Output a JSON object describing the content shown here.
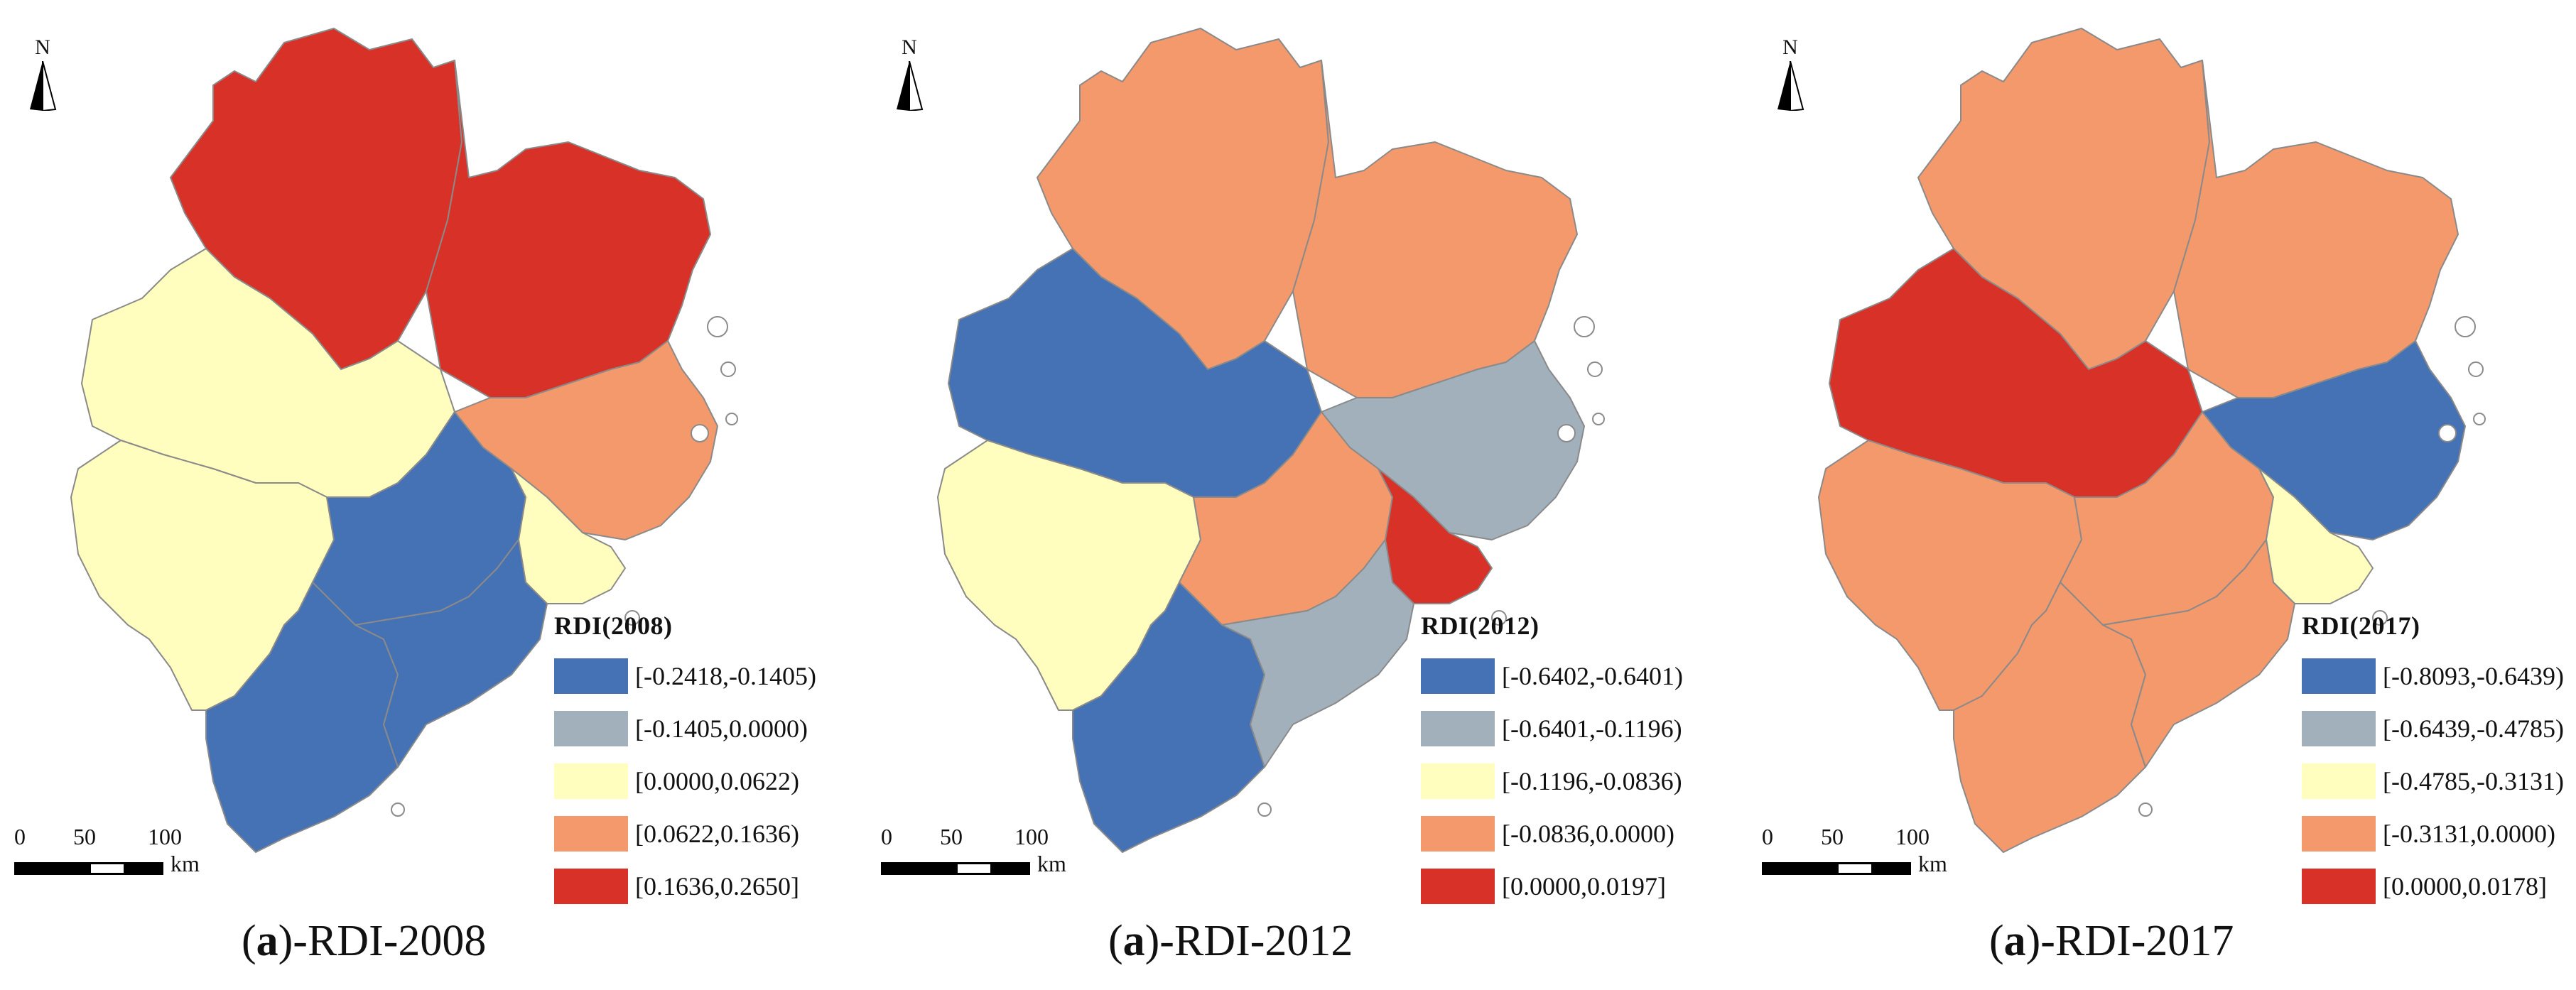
{
  "colors": {
    "blue": "#4572b4",
    "grey": "#a2b0bb",
    "cream": "#fffebe",
    "orange": "#f4996b",
    "red": "#d83128"
  },
  "north_label": "N",
  "scale": {
    "ticks": [
      "0",
      "50",
      "100"
    ],
    "unit": "km"
  },
  "panels": [
    {
      "legend_title": "RDI(2008)",
      "legend": [
        {
          "label": "[-0.2418,-0.1405)",
          "color": "blue"
        },
        {
          "label": "[-0.1405,0.0000)",
          "color": "grey"
        },
        {
          "label": "[0.0000,0.0622)",
          "color": "cream"
        },
        {
          "label": "[0.0622,0.1636)",
          "color": "orange"
        },
        {
          "label": "[0.1636,0.2650]",
          "color": "red"
        }
      ],
      "caption_letter": "a",
      "caption_rest": ")-RDI-2008",
      "regions": {
        "north": "red",
        "northeast": "red",
        "west": "cream",
        "southwest": "cream",
        "east": "orange",
        "center": "blue",
        "coast": "cream",
        "south": "blue",
        "south2": "blue"
      }
    },
    {
      "legend_title": "RDI(2012)",
      "legend": [
        {
          "label": "[-0.6402,-0.6401)",
          "color": "blue"
        },
        {
          "label": "[-0.6401,-0.1196)",
          "color": "grey"
        },
        {
          "label": "[-0.1196,-0.0836)",
          "color": "cream"
        },
        {
          "label": "[-0.0836,0.0000)",
          "color": "orange"
        },
        {
          "label": "[0.0000,0.0197]",
          "color": "red"
        }
      ],
      "caption_letter": "a",
      "caption_rest": ")-RDI-2012",
      "regions": {
        "north": "orange",
        "northeast": "orange",
        "west": "blue",
        "southwest": "cream",
        "east": "grey",
        "center": "orange",
        "coast": "red",
        "south": "blue",
        "south2": "grey"
      }
    },
    {
      "legend_title": "RDI(2017)",
      "legend": [
        {
          "label": "[-0.8093,-0.6439)",
          "color": "blue"
        },
        {
          "label": "[-0.6439,-0.4785)",
          "color": "grey"
        },
        {
          "label": "[-0.4785,-0.3131)",
          "color": "cream"
        },
        {
          "label": "[-0.3131,0.0000)",
          "color": "orange"
        },
        {
          "label": "[0.0000,0.0178]",
          "color": "red"
        }
      ],
      "caption_letter": "a",
      "caption_rest": ")-RDI-2017",
      "regions": {
        "north": "orange",
        "northeast": "orange",
        "west": "red",
        "southwest": "orange",
        "east": "blue",
        "center": "orange",
        "coast": "cream",
        "south": "orange",
        "south2": "orange"
      }
    }
  ]
}
